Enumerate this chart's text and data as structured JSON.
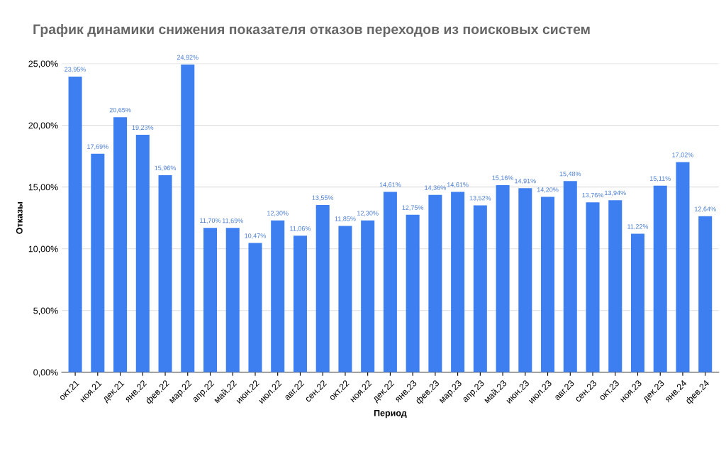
{
  "chart_data": {
    "type": "bar",
    "title": "График динамики снижения показателя отказов переходов из поисковых систем",
    "xlabel": "Период",
    "ylabel": "Отказы",
    "categories": [
      "окт.21",
      "ноя.21",
      "дек.21",
      "янв.22",
      "фев.22",
      "мар.22",
      "апр.22",
      "май.22",
      "июн.22",
      "июл.22",
      "авг.22",
      "сен.22",
      "окт.22",
      "ноя.22",
      "дек.22",
      "янв.23",
      "фев.23",
      "мар.23",
      "апр.23",
      "май.23",
      "июн.23",
      "июл.23",
      "авг.23",
      "сен.23",
      "окт.23",
      "ноя.23",
      "дек.23",
      "янв.24",
      "фев.24"
    ],
    "values": [
      23.95,
      17.69,
      20.65,
      19.23,
      15.96,
      24.92,
      11.7,
      11.69,
      10.47,
      12.3,
      11.06,
      13.55,
      11.85,
      12.3,
      14.61,
      12.75,
      14.36,
      14.61,
      13.52,
      15.16,
      14.91,
      14.2,
      15.48,
      13.76,
      13.94,
      11.22,
      15.11,
      17.02,
      12.64
    ],
    "value_labels": [
      "23,95%",
      "17,69%",
      "20,65%",
      "19,23%",
      "15,96%",
      "24,92%",
      "11,70%",
      "11,69%",
      "10,47%",
      "12,30%",
      "11,06%",
      "13,55%",
      "11,85%",
      "12,30%",
      "14,61%",
      "12,75%",
      "14,36%",
      "14,61%",
      "13,52%",
      "15,16%",
      "14,91%",
      "14,20%",
      "15,48%",
      "13,76%",
      "13,94%",
      "11,22%",
      "15,11%",
      "17,02%",
      "12,64%"
    ],
    "color": "#3d7ff0",
    "ylim": [
      0,
      25
    ],
    "yticks": [
      {
        "value": 0,
        "label": "0,00%"
      },
      {
        "value": 5,
        "label": "5,00%"
      },
      {
        "value": 10,
        "label": "10,00%"
      },
      {
        "value": 15,
        "label": "15,00%"
      },
      {
        "value": 20,
        "label": "20,00%"
      },
      {
        "value": 25,
        "label": "25,00%"
      }
    ],
    "grid": "y",
    "legend": false
  }
}
